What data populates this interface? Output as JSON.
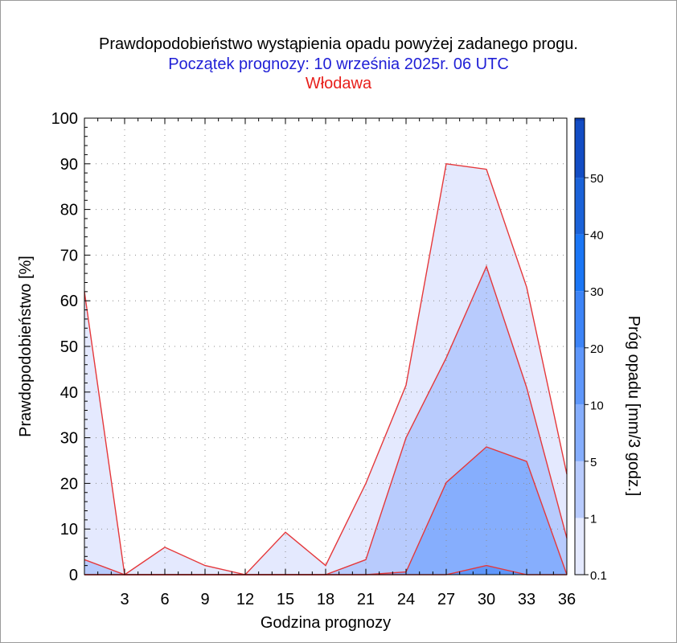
{
  "title": "Prawdopodobieństwo wystąpienia opadu powyżej zadanego progu.",
  "subtitle": "Początek prognozy: 10 września 2025r. 06 UTC",
  "location": "Włodawa",
  "colors": {
    "title": "#000000",
    "subtitle": "#1f1fd6",
    "location": "#e8201c",
    "line": "#e5383b",
    "fill_levels": [
      "#e4e9fe",
      "#b8cbfd",
      "#86aefd",
      "#5f97fb",
      "#3d84f7",
      "#1b76f5",
      "#1b62d8",
      "#134dc4",
      "#0b3cb0"
    ]
  },
  "chart_data": {
    "type": "area",
    "xlabel": "Godzina prognozy",
    "ylabel": "Prawdopodobieństwo [%]",
    "xlim": [
      0,
      36
    ],
    "ylim": [
      0,
      100
    ],
    "x": [
      0,
      3,
      6,
      9,
      12,
      15,
      18,
      21,
      24,
      27,
      30,
      33,
      36
    ],
    "x_ticks": [
      "3",
      "6",
      "9",
      "12",
      "15",
      "18",
      "21",
      "24",
      "27",
      "30",
      "33",
      "36"
    ],
    "y_ticks": [
      "0",
      "10",
      "20",
      "30",
      "40",
      "50",
      "60",
      "70",
      "80",
      "90",
      "100"
    ],
    "grid": true,
    "series": [
      {
        "values": [
          62,
          0,
          6,
          2,
          0,
          9.3,
          2,
          20,
          41.5,
          90,
          88.8,
          63,
          22
        ]
      },
      {
        "values": [
          3.3,
          0,
          0,
          0,
          0,
          0,
          0,
          3.3,
          30,
          47.5,
          67.5,
          41,
          8
        ]
      },
      {
        "values": [
          0,
          0,
          0,
          0,
          0,
          0,
          0,
          0,
          0.6,
          20.2,
          28,
          24.8,
          0
        ]
      },
      {
        "values": [
          0,
          0,
          0,
          0,
          0,
          0,
          0,
          0,
          0,
          0,
          2,
          0,
          0
        ]
      }
    ],
    "colorbar": {
      "label": "Próg opadu [mm/3 godz.]",
      "tick_labels": [
        "0.1",
        "1",
        "5",
        "10",
        "20",
        "30",
        "40",
        "50"
      ]
    }
  }
}
